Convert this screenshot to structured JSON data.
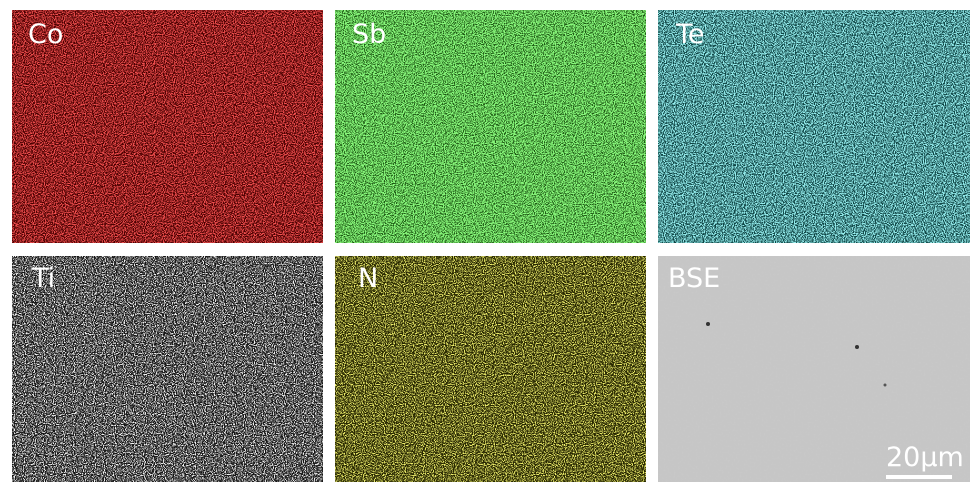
{
  "panels": [
    {
      "label": "Co"
    },
    {
      "label": "Sb"
    },
    {
      "label": "Te"
    },
    {
      "label": "Ti"
    },
    {
      "label": "N"
    },
    {
      "label": "BSE"
    }
  ],
  "scale_bar": {
    "label": "20μm"
  }
}
